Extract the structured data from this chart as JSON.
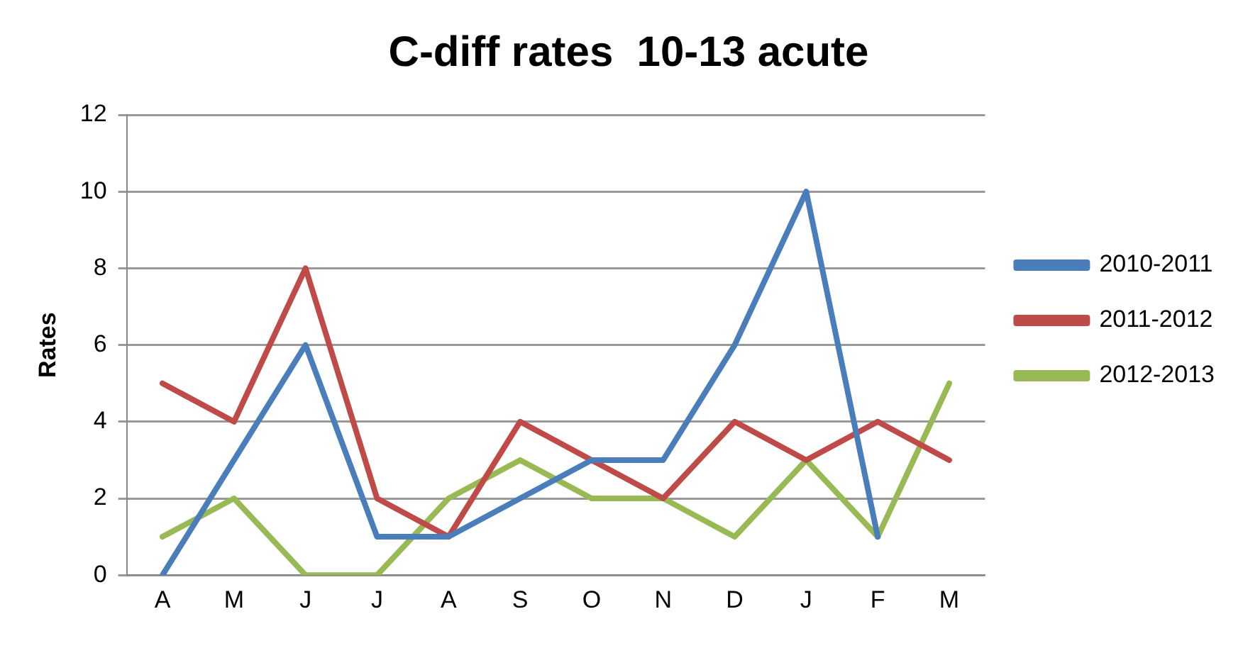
{
  "chart_data": {
    "type": "line",
    "title": "C-diff rates  10-13 acute",
    "ylabel": "Rates",
    "categories": [
      "A",
      "M",
      "J",
      "J",
      "A",
      "S",
      "O",
      "N",
      "D",
      "J",
      "F",
      "M"
    ],
    "series": [
      {
        "name": "2010-2011",
        "color": "#4a7ebb",
        "values": [
          0,
          3,
          6,
          1,
          1,
          2,
          3,
          3,
          6,
          10,
          1,
          null
        ]
      },
      {
        "name": "2011-2012",
        "color": "#be4b48",
        "values": [
          5,
          4,
          8,
          2,
          1,
          4,
          3,
          2,
          4,
          3,
          4,
          3
        ]
      },
      {
        "name": "2012-2013",
        "color": "#98b954",
        "values": [
          1,
          2,
          0,
          0,
          2,
          3,
          2,
          2,
          1,
          3,
          1,
          5
        ]
      }
    ],
    "ylim": [
      0,
      12
    ],
    "yticks": [
      0,
      2,
      4,
      6,
      8,
      10,
      12
    ],
    "grid": "y",
    "legend": "right",
    "marker": "none",
    "line_style": "solid"
  }
}
